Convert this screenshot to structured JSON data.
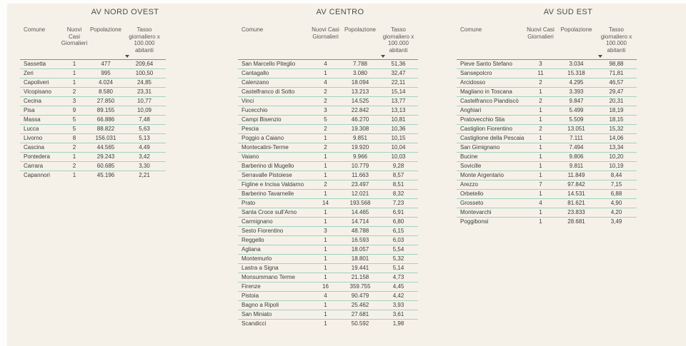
{
  "colors": {
    "background": "#f6f1e8",
    "row_divider": "#a2d1bf",
    "header_divider": "#8a8a8a",
    "title_color": "#454e55",
    "header_text": "#575757",
    "text": "#3b3b3b"
  },
  "panes": [
    {
      "title": "AV NORD OVEST",
      "columns": {
        "comune": "Comune",
        "nuovi_casi": "Nuovi Casi\nGiornalieri",
        "popolazione": "Popolazione",
        "tasso": "Tasso\ngiornaliero x\n100.000\nabitanti"
      },
      "sort_indicator": "descending",
      "rows": [
        [
          "Sassetta",
          "1",
          "477",
          "209,64"
        ],
        [
          "Zeri",
          "1",
          "995",
          "100,50"
        ],
        [
          "Capoliveri",
          "1",
          "4.024",
          "24,85"
        ],
        [
          "Vicopisano",
          "2",
          "8.580",
          "23,31"
        ],
        [
          "Cecina",
          "3",
          "27.850",
          "10,77"
        ],
        [
          "Pisa",
          "9",
          "89.155",
          "10,09"
        ],
        [
          "Massa",
          "5",
          "66.886",
          "7,48"
        ],
        [
          "Lucca",
          "5",
          "88.822",
          "5,63"
        ],
        [
          "Livorno",
          "8",
          "156.031",
          "5,13"
        ],
        [
          "Cascina",
          "2",
          "44.565",
          "4,49"
        ],
        [
          "Pontedera",
          "1",
          "29.243",
          "3,42"
        ],
        [
          "Carrara",
          "2",
          "60.685",
          "3,30"
        ],
        [
          "Capannori",
          "1",
          "45.196",
          "2,21"
        ]
      ]
    },
    {
      "title": "AV CENTRO",
      "columns": {
        "comune": "Comune",
        "nuovi_casi": "Nuovi Casi\nGiornalieri",
        "popolazione": "Popolazione",
        "tasso": "Tasso\ngiornaliero x\n100.000\nabitanti"
      },
      "sort_indicator": "descending",
      "rows": [
        [
          "San Marcello Piteglio",
          "4",
          "7.788",
          "51,36"
        ],
        [
          "Cantagallo",
          "1",
          "3.080",
          "32,47"
        ],
        [
          "Calenzano",
          "4",
          "18.094",
          "22,11"
        ],
        [
          "Castelfranco di Sotto",
          "2",
          "13.213",
          "15,14"
        ],
        [
          "Vinci",
          "2",
          "14.525",
          "13,77"
        ],
        [
          "Fucecchio",
          "3",
          "22.842",
          "13,13"
        ],
        [
          "Campi Bisenzio",
          "5",
          "46.270",
          "10,81"
        ],
        [
          "Pescia",
          "2",
          "19.308",
          "10,36"
        ],
        [
          "Poggio a Caiano",
          "1",
          "9.851",
          "10,15"
        ],
        [
          "Montecatini-Terme",
          "2",
          "19.920",
          "10,04"
        ],
        [
          "Vaiano",
          "1",
          "9.966",
          "10,03"
        ],
        [
          "Barberino di Mugello",
          "1",
          "10.779",
          "9,28"
        ],
        [
          "Serravalle Pistoiese",
          "1",
          "11.663",
          "8,57"
        ],
        [
          "Figline e Incisa Valdarno",
          "2",
          "23.497",
          "8,51"
        ],
        [
          "Barberino Tavarnelle",
          "1",
          "12.021",
          "8,32"
        ],
        [
          "Prato",
          "14",
          "193.568",
          "7,23"
        ],
        [
          "Santa Croce sull'Arno",
          "1",
          "14.465",
          "6,91"
        ],
        [
          "Carmignano",
          "1",
          "14.714",
          "6,80"
        ],
        [
          "Sesto Fiorentino",
          "3",
          "48.788",
          "6,15"
        ],
        [
          "Reggello",
          "1",
          "16.593",
          "6,03"
        ],
        [
          "Agliana",
          "1",
          "18.057",
          "5,54"
        ],
        [
          "Montemurlo",
          "1",
          "18.801",
          "5,32"
        ],
        [
          "Lastra a Signa",
          "1",
          "19.441",
          "5,14"
        ],
        [
          "Monsummano Terme",
          "1",
          "21.158",
          "4,73"
        ],
        [
          "Firenze",
          "16",
          "359.755",
          "4,45"
        ],
        [
          "Pistoia",
          "4",
          "90.479",
          "4,42"
        ],
        [
          "Bagno a Ripoli",
          "1",
          "25.462",
          "3,93"
        ],
        [
          "San Miniato",
          "1",
          "27.681",
          "3,61"
        ],
        [
          "Scandicci",
          "1",
          "50.592",
          "1,98"
        ]
      ]
    },
    {
      "title": "AV SUD EST",
      "columns": {
        "comune": "Comune",
        "nuovi_casi": "Nuovi Casi\nGiornalieri",
        "popolazione": "Popolazione",
        "tasso": "Tasso\ngiornaliero x\n100.000\nabitanti"
      },
      "sort_indicator": "descending",
      "rows": [
        [
          "Pieve Santo Stefano",
          "3",
          "3.034",
          "98,88"
        ],
        [
          "Sansepolcro",
          "11",
          "15.318",
          "71,81"
        ],
        [
          "Arcidosso",
          "2",
          "4.295",
          "46,57"
        ],
        [
          "Magliano in Toscana",
          "1",
          "3.393",
          "29,47"
        ],
        [
          "Castelfranco Piandiscò",
          "2",
          "9.847",
          "20,31"
        ],
        [
          "Anghiari",
          "1",
          "5.499",
          "18,19"
        ],
        [
          "Pratovecchio Stia",
          "1",
          "5.509",
          "18,15"
        ],
        [
          "Castiglion Fiorentino",
          "2",
          "13.051",
          "15,32"
        ],
        [
          "Castiglione della Pescaia",
          "1",
          "7.111",
          "14,06"
        ],
        [
          "San Gimignano",
          "1",
          "7.494",
          "13,34"
        ],
        [
          "Bucine",
          "1",
          "9.806",
          "10,20"
        ],
        [
          "Sovicille",
          "1",
          "9.811",
          "10,19"
        ],
        [
          "Monte Argentario",
          "1",
          "11.849",
          "8,44"
        ],
        [
          "Arezzo",
          "7",
          "97.842",
          "7,15"
        ],
        [
          "Orbetello",
          "1",
          "14.531",
          "6,88"
        ],
        [
          "Grosseto",
          "4",
          "81.621",
          "4,90"
        ],
        [
          "Montevarchi",
          "1",
          "23.833",
          "4,20"
        ],
        [
          "Poggibonsi",
          "1",
          "28.681",
          "3,49"
        ]
      ]
    }
  ]
}
